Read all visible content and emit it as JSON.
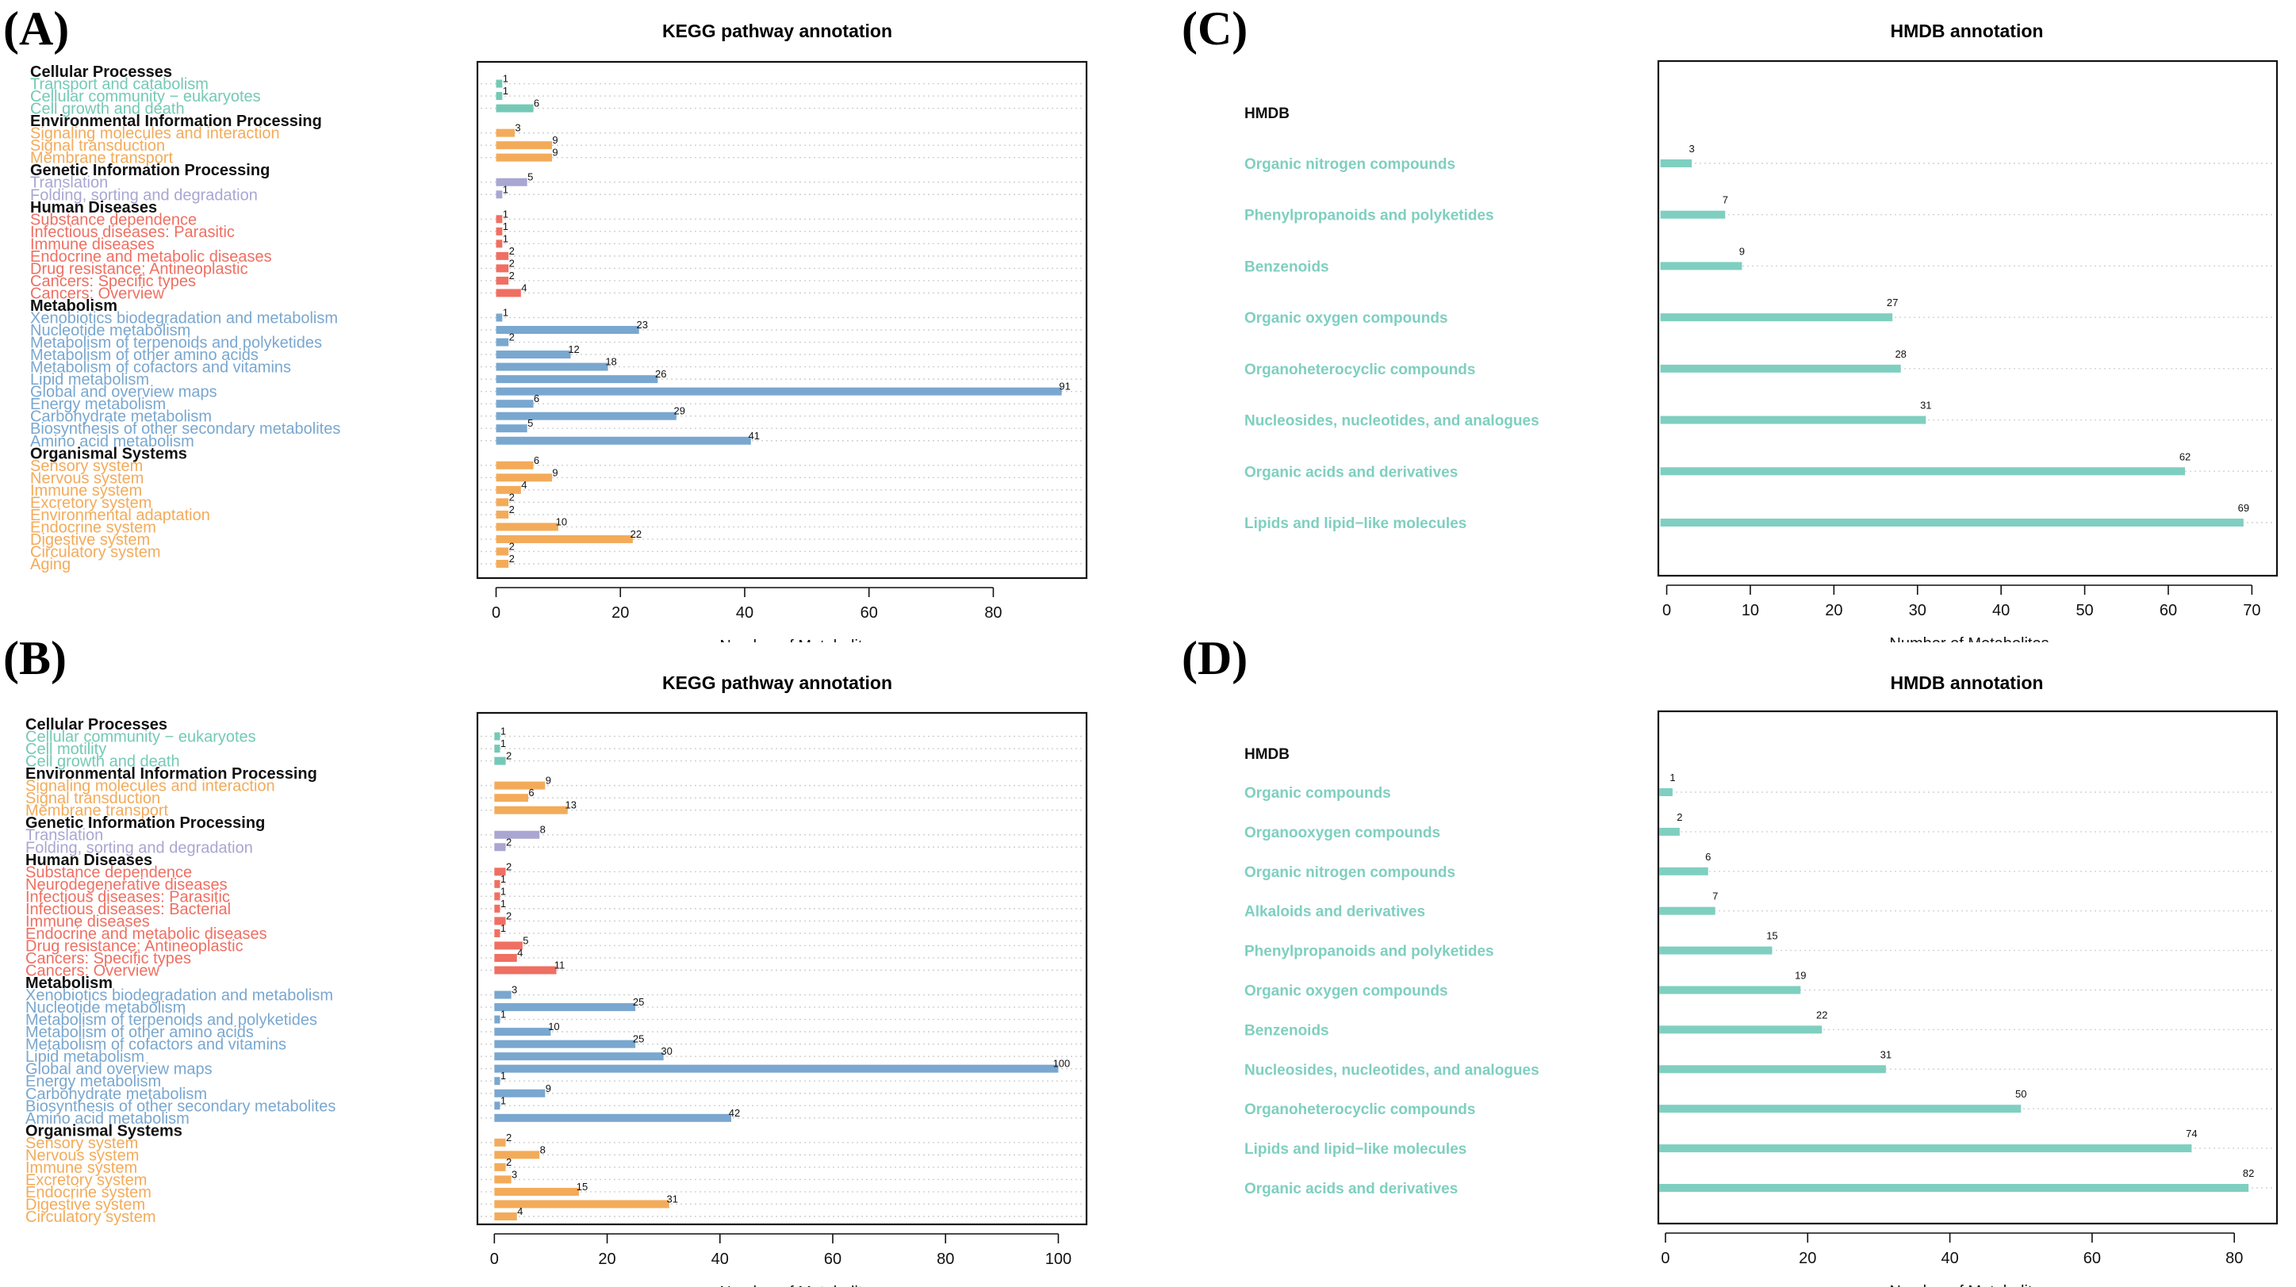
{
  "colors": {
    "Cellular Processes": "#74c9b6",
    "Environmental Information Processing": "#f3ab5a",
    "Genetic Information Processing": "#a9a6d2",
    "Human Diseases": "#ef6f62",
    "Metabolism": "#79a7cf",
    "Organismal Systems": "#f3ab5a",
    "hmdb": "#7fcfc0"
  },
  "chart_data": [
    {
      "id": "A",
      "label": "(A)",
      "type": "bar",
      "orientation": "horizontal",
      "title": "KEGG pathway annotation",
      "xlabel": "Number of Metabolites",
      "xlim": [
        -3,
        95
      ],
      "xticks": [
        0,
        20,
        40,
        60,
        80
      ],
      "groups": [
        {
          "name": "Cellular Processes",
          "items": [
            {
              "label": "Transport and catabolism",
              "value": 1
            },
            {
              "label": "Cellular community − eukaryotes",
              "value": 1
            },
            {
              "label": "Cell growth and death",
              "value": 6
            }
          ]
        },
        {
          "name": "Environmental Information Processing",
          "items": [
            {
              "label": "Signaling molecules and interaction",
              "value": 3
            },
            {
              "label": "Signal transduction",
              "value": 9
            },
            {
              "label": "Membrane transport",
              "value": 9
            }
          ]
        },
        {
          "name": "Genetic Information Processing",
          "items": [
            {
              "label": "Translation",
              "value": 5
            },
            {
              "label": "Folding, sorting and degradation",
              "value": 1
            }
          ]
        },
        {
          "name": "Human Diseases",
          "items": [
            {
              "label": "Substance dependence",
              "value": 1
            },
            {
              "label": "Infectious diseases: Parasitic",
              "value": 1
            },
            {
              "label": "Immune diseases",
              "value": 1
            },
            {
              "label": "Endocrine and metabolic diseases",
              "value": 2
            },
            {
              "label": "Drug resistance: Antineoplastic",
              "value": 2
            },
            {
              "label": "Cancers: Specific types",
              "value": 2
            },
            {
              "label": "Cancers: Overview",
              "value": 4
            }
          ]
        },
        {
          "name": "Metabolism",
          "items": [
            {
              "label": "Xenobiotics biodegradation and metabolism",
              "value": 1
            },
            {
              "label": "Nucleotide metabolism",
              "value": 23
            },
            {
              "label": "Metabolism of terpenoids and polyketides",
              "value": 2
            },
            {
              "label": "Metabolism of other amino acids",
              "value": 12
            },
            {
              "label": "Metabolism of cofactors and vitamins",
              "value": 18
            },
            {
              "label": "Lipid metabolism",
              "value": 26
            },
            {
              "label": "Global and overview maps",
              "value": 91
            },
            {
              "label": "Energy metabolism",
              "value": 6
            },
            {
              "label": "Carbohydrate metabolism",
              "value": 29
            },
            {
              "label": "Biosynthesis of other secondary metabolites",
              "value": 5
            },
            {
              "label": "Amino acid metabolism",
              "value": 41
            }
          ]
        },
        {
          "name": "Organismal Systems",
          "items": [
            {
              "label": "Sensory system",
              "value": 6
            },
            {
              "label": "Nervous system",
              "value": 9
            },
            {
              "label": "Immune system",
              "value": 4
            },
            {
              "label": "Excretory system",
              "value": 2
            },
            {
              "label": "Environmental adaptation",
              "value": 2
            },
            {
              "label": "Endocrine system",
              "value": 10
            },
            {
              "label": "Digestive system",
              "value": 22
            },
            {
              "label": "Circulatory system",
              "value": 2
            },
            {
              "label": "Aging",
              "value": 2
            }
          ]
        }
      ]
    },
    {
      "id": "B",
      "label": "(B)",
      "type": "bar",
      "orientation": "horizontal",
      "title": "KEGG pathway annotation",
      "xlabel": "Number of Metabolites",
      "xlim": [
        -3,
        105
      ],
      "xticks": [
        0,
        20,
        40,
        60,
        80,
        100
      ],
      "groups": [
        {
          "name": "Cellular Processes",
          "items": [
            {
              "label": "Cellular community − eukaryotes",
              "value": 1
            },
            {
              "label": "Cell motility",
              "value": 1
            },
            {
              "label": "Cell growth and death",
              "value": 2
            }
          ]
        },
        {
          "name": "Environmental Information Processing",
          "items": [
            {
              "label": "Signaling molecules and interaction",
              "value": 9
            },
            {
              "label": "Signal transduction",
              "value": 6
            },
            {
              "label": "Membrane transport",
              "value": 13
            }
          ]
        },
        {
          "name": "Genetic Information Processing",
          "items": [
            {
              "label": "Translation",
              "value": 8
            },
            {
              "label": "Folding, sorting and degradation",
              "value": 2
            }
          ]
        },
        {
          "name": "Human Diseases",
          "items": [
            {
              "label": "Substance dependence",
              "value": 2
            },
            {
              "label": "Neurodegenerative diseases",
              "value": 1
            },
            {
              "label": "Infectious diseases: Parasitic",
              "value": 1
            },
            {
              "label": "Infectious diseases: Bacterial",
              "value": 1
            },
            {
              "label": "Immune diseases",
              "value": 2
            },
            {
              "label": "Endocrine and metabolic diseases",
              "value": 1
            },
            {
              "label": "Drug resistance: Antineoplastic",
              "value": 5
            },
            {
              "label": "Cancers: Specific types",
              "value": 4
            },
            {
              "label": "Cancers: Overview",
              "value": 11
            }
          ]
        },
        {
          "name": "Metabolism",
          "items": [
            {
              "label": "Xenobiotics biodegradation and metabolism",
              "value": 3
            },
            {
              "label": "Nucleotide metabolism",
              "value": 25
            },
            {
              "label": "Metabolism of terpenoids and polyketides",
              "value": 1
            },
            {
              "label": "Metabolism of other amino acids",
              "value": 10
            },
            {
              "label": "Metabolism of cofactors and vitamins",
              "value": 25
            },
            {
              "label": "Lipid metabolism",
              "value": 30
            },
            {
              "label": "Global and overview maps",
              "value": 100
            },
            {
              "label": "Energy metabolism",
              "value": 1
            },
            {
              "label": "Carbohydrate metabolism",
              "value": 9
            },
            {
              "label": "Biosynthesis of other secondary metabolites",
              "value": 1
            },
            {
              "label": "Amino acid metabolism",
              "value": 42
            }
          ]
        },
        {
          "name": "Organismal Systems",
          "items": [
            {
              "label": "Sensory system",
              "value": 2
            },
            {
              "label": "Nervous system",
              "value": 8
            },
            {
              "label": "Immune system",
              "value": 2
            },
            {
              "label": "Excretory system",
              "value": 3
            },
            {
              "label": "Endocrine system",
              "value": 15
            },
            {
              "label": "Digestive system",
              "value": 31
            },
            {
              "label": "Circulatory system",
              "value": 4
            }
          ]
        }
      ]
    },
    {
      "id": "C",
      "label": "(C)",
      "type": "bar",
      "orientation": "horizontal",
      "title": "HMDB annotation",
      "xlabel": "Number of Metabolites",
      "header": "HMDB",
      "xlim": [
        -1,
        73
      ],
      "xticks": [
        0,
        10,
        20,
        30,
        40,
        50,
        60,
        70
      ],
      "categories": [
        "Organic nitrogen compounds",
        "Phenylpropanoids and polyketides",
        "Benzenoids",
        "Organic oxygen compounds",
        "Organoheterocyclic compounds",
        "Nucleosides, nucleotides, and analogues",
        "Organic acids and derivatives",
        "Lipids and lipid−like molecules"
      ],
      "values": [
        3,
        7,
        9,
        27,
        28,
        31,
        62,
        69
      ]
    },
    {
      "id": "D",
      "label": "(D)",
      "type": "bar",
      "orientation": "horizontal",
      "title": "HMDB annotation",
      "xlabel": "Number of Metabolites",
      "header": "HMDB",
      "xlim": [
        -1,
        86
      ],
      "xticks": [
        0,
        20,
        40,
        60,
        80
      ],
      "categories": [
        "Organic compounds",
        "Organooxygen compounds",
        "Organic nitrogen compounds",
        "Alkaloids and derivatives",
        "Phenylpropanoids and polyketides",
        "Organic oxygen compounds",
        "Benzenoids",
        "Nucleosides, nucleotides, and analogues",
        "Organoheterocyclic compounds",
        "Lipids and lipid−like molecules",
        "Organic acids and derivatives"
      ],
      "values": [
        1,
        2,
        6,
        7,
        15,
        19,
        22,
        31,
        50,
        74,
        82
      ]
    }
  ]
}
